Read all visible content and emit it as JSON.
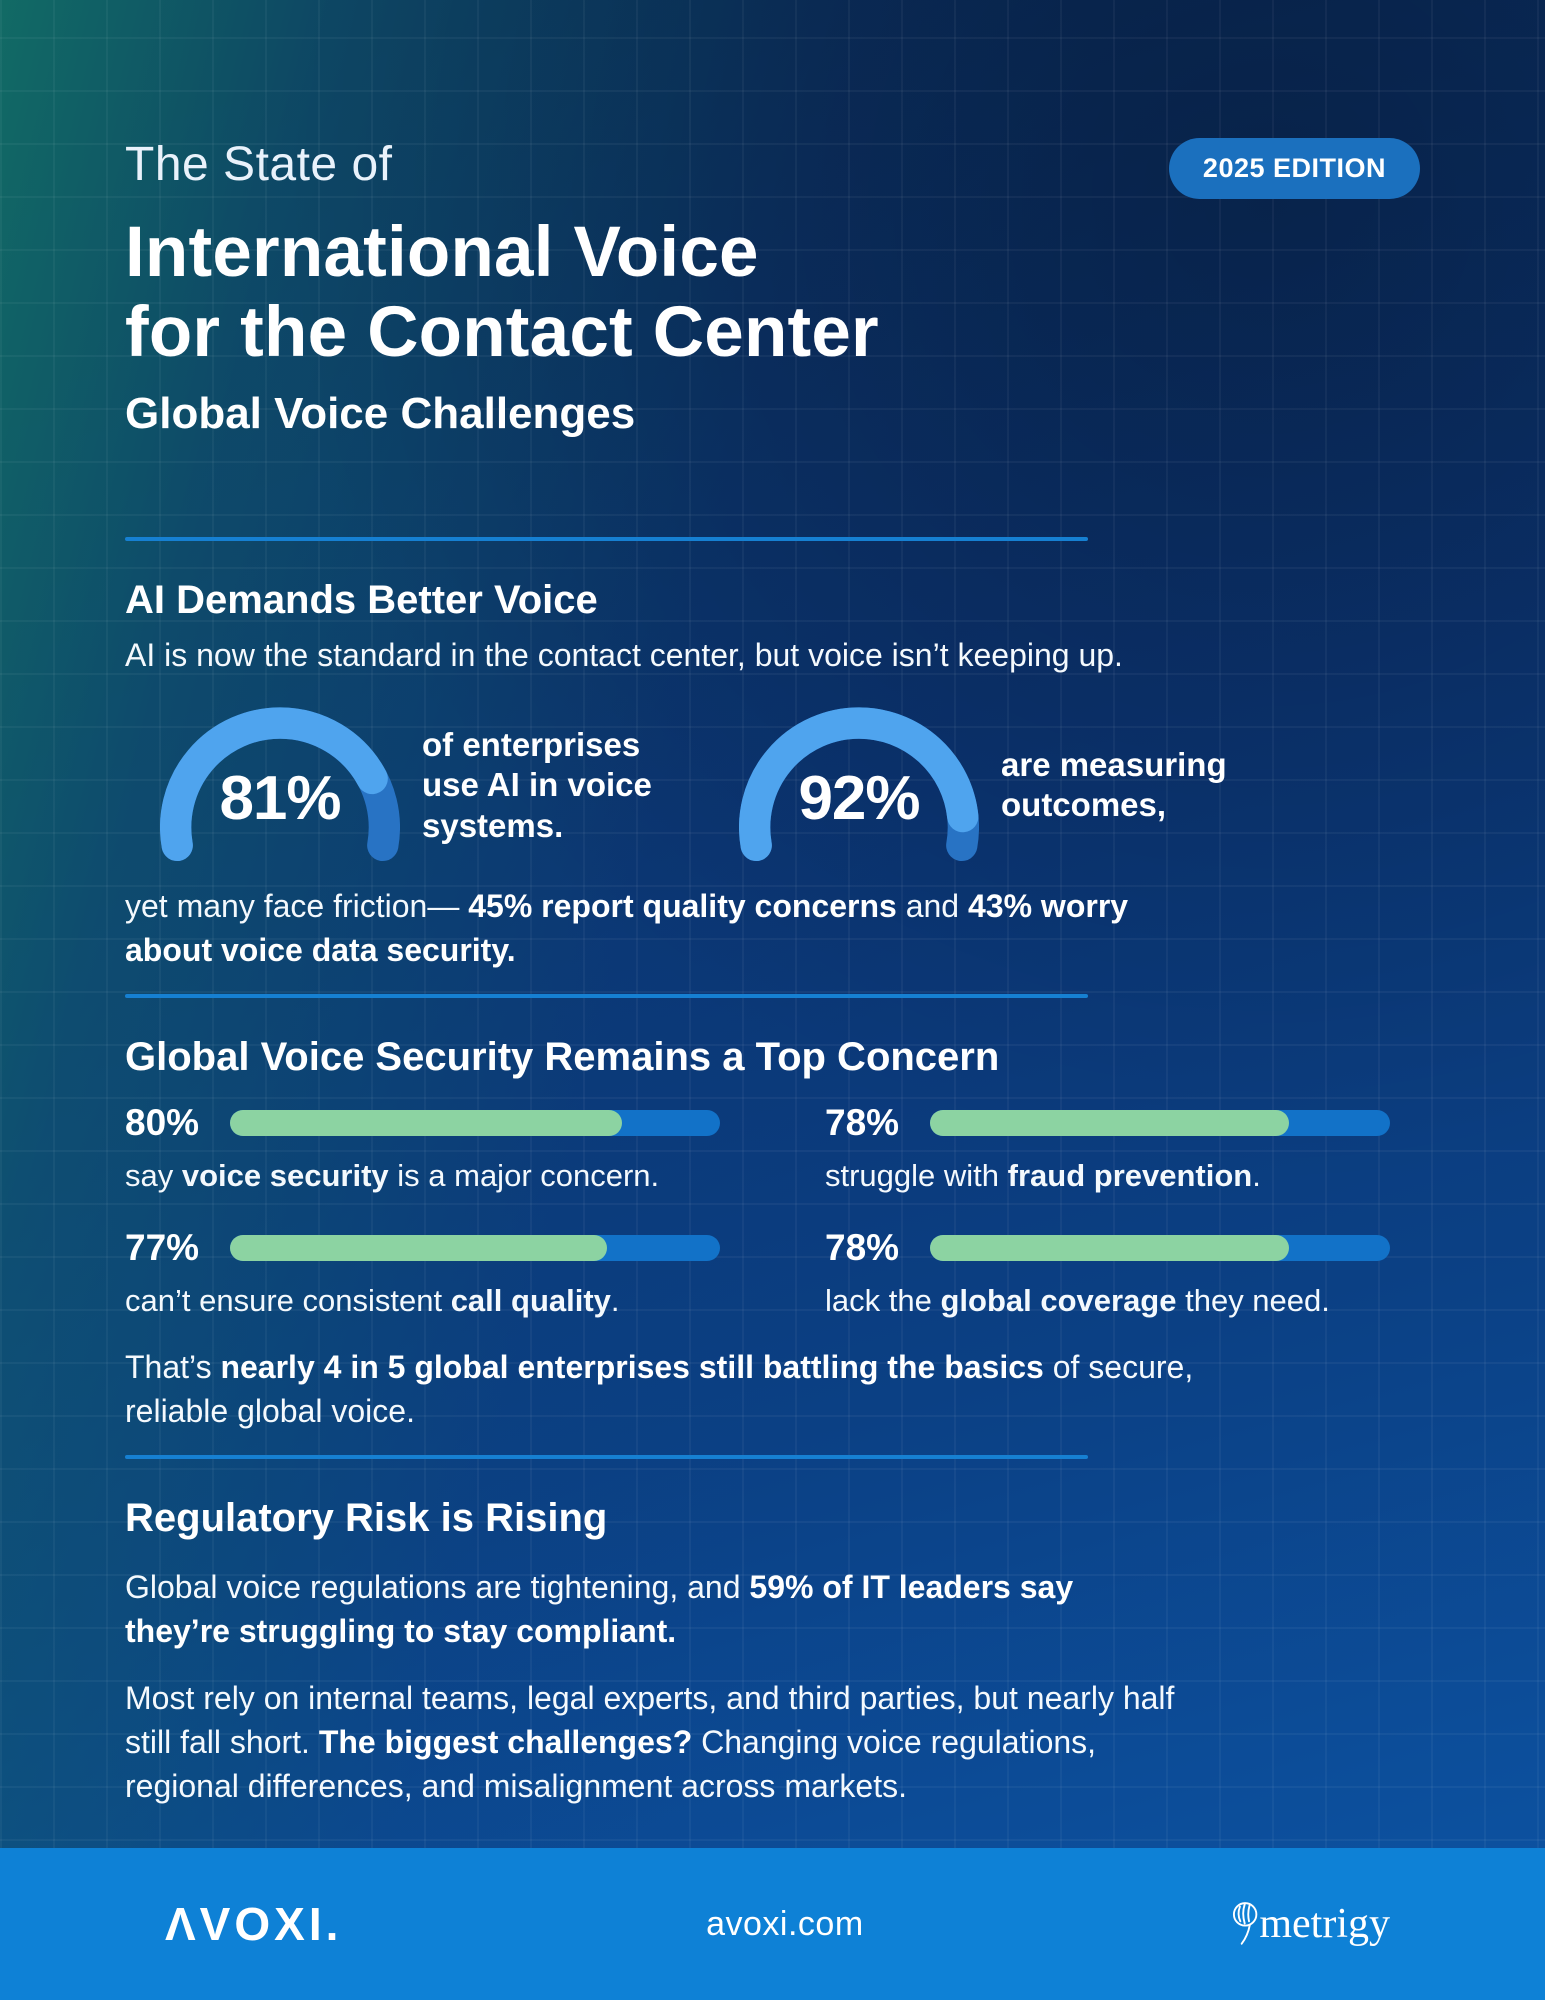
{
  "badge": {
    "label": "2025 EDITION"
  },
  "header": {
    "eyebrow": "The State of",
    "title_line1": "International Voice",
    "title_line2": "for the Contact Center",
    "subtitle": "Global Voice Challenges"
  },
  "ai_section": {
    "heading": "AI Demands Better Voice",
    "intro": "AI is now the standard in the contact center, but voice isn’t keeping up.",
    "gauges": [
      {
        "value": 81,
        "label": "81%",
        "caption": "of enterprises use AI in voice systems."
      },
      {
        "value": 92,
        "label": "92%",
        "caption": "are measuring outcomes,"
      }
    ],
    "friction": [
      {
        "t": "yet many face friction— ",
        "b": false
      },
      {
        "t": "45% report quality concerns",
        "b": true
      },
      {
        "t": " and ",
        "b": false
      },
      {
        "t": "43% worry about voice data security.",
        "b": true
      }
    ]
  },
  "security_section": {
    "heading": "Global Voice Security Remains a Top Concern",
    "stats": [
      {
        "value": 80,
        "label": "80%",
        "caption": [
          {
            "t": "say ",
            "b": false
          },
          {
            "t": "voice security",
            "b": true
          },
          {
            "t": " is a major concern.",
            "b": false
          }
        ]
      },
      {
        "value": 78,
        "label": "78%",
        "caption": [
          {
            "t": "struggle with ",
            "b": false
          },
          {
            "t": "fraud prevention",
            "b": true
          },
          {
            "t": ".",
            "b": false
          }
        ]
      },
      {
        "value": 77,
        "label": "77%",
        "caption": [
          {
            "t": "can’t ensure consistent ",
            "b": false
          },
          {
            "t": "call quality",
            "b": true
          },
          {
            "t": ".",
            "b": false
          }
        ]
      },
      {
        "value": 78,
        "label": "78%",
        "caption": [
          {
            "t": "lack the ",
            "b": false
          },
          {
            "t": "global coverage",
            "b": true
          },
          {
            "t": " they need.",
            "b": false
          }
        ]
      }
    ],
    "summary": [
      {
        "t": "That’s ",
        "b": false
      },
      {
        "t": "nearly 4 in 5 global enterprises still battling the basics",
        "b": true
      },
      {
        "t": " of secure, reliable global voice.",
        "b": false
      }
    ]
  },
  "regulatory_section": {
    "heading": "Regulatory Risk is Rising",
    "p1": [
      {
        "t": "Global voice regulations are tightening, and ",
        "b": false
      },
      {
        "t": "59% of IT leaders say they’re struggling to stay compliant.",
        "b": true
      }
    ],
    "p2": [
      {
        "t": "Most rely on internal teams, legal experts, and third parties, but nearly half still fall short. ",
        "b": false
      },
      {
        "t": "The biggest challenges?",
        "b": true
      },
      {
        "t": " Changing voice regulations, regional differences, and misalignment across markets.",
        "b": false
      }
    ]
  },
  "footer": {
    "brand": "AVOXI",
    "logo_text": "ΛVOXI.",
    "site": "avoxi.com",
    "partner": "metrigy"
  },
  "colors": {
    "gauge_fill": "#4FA4EE",
    "gauge_track": "#2873C4",
    "bar_fill": "#8CD3A2",
    "bar_track": "#1272C8",
    "divider": "#1680D2",
    "badge_bg": "#1B70BE",
    "footer_bg": "#0E81D6",
    "background_teal": "#126E66",
    "background_navy": "#0A2A58",
    "background_blue": "#0C55A6"
  }
}
